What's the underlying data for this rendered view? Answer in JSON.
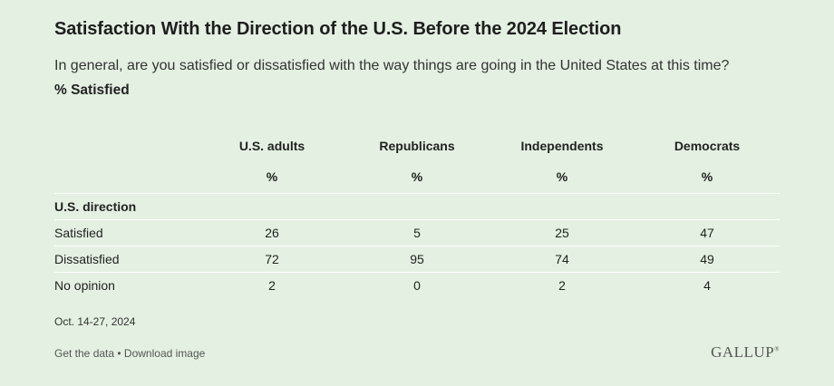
{
  "title": "Satisfaction With the Direction of the U.S. Before the 2024 Election",
  "subtitle": "In general, are you satisfied or dissatisfied with the way things are going in the United States at this time?",
  "measure": "% Satisfied",
  "chart_data": {
    "type": "table",
    "columns": [
      "U.S. adults",
      "Republicans",
      "Independents",
      "Democrats"
    ],
    "unit": "%",
    "section": "U.S. direction",
    "rows": [
      {
        "label": "Satisfied",
        "values": [
          "26",
          "5",
          "25",
          "47"
        ]
      },
      {
        "label": "Dissatisfied",
        "values": [
          "72",
          "95",
          "74",
          "49"
        ]
      },
      {
        "label": "No opinion",
        "values": [
          "2",
          "0",
          "2",
          "4"
        ]
      }
    ]
  },
  "date": "Oct. 14-27, 2024",
  "footer": {
    "get_data": "Get the data",
    "separator": " • ",
    "download": "Download image"
  },
  "logo": "GALLUP"
}
